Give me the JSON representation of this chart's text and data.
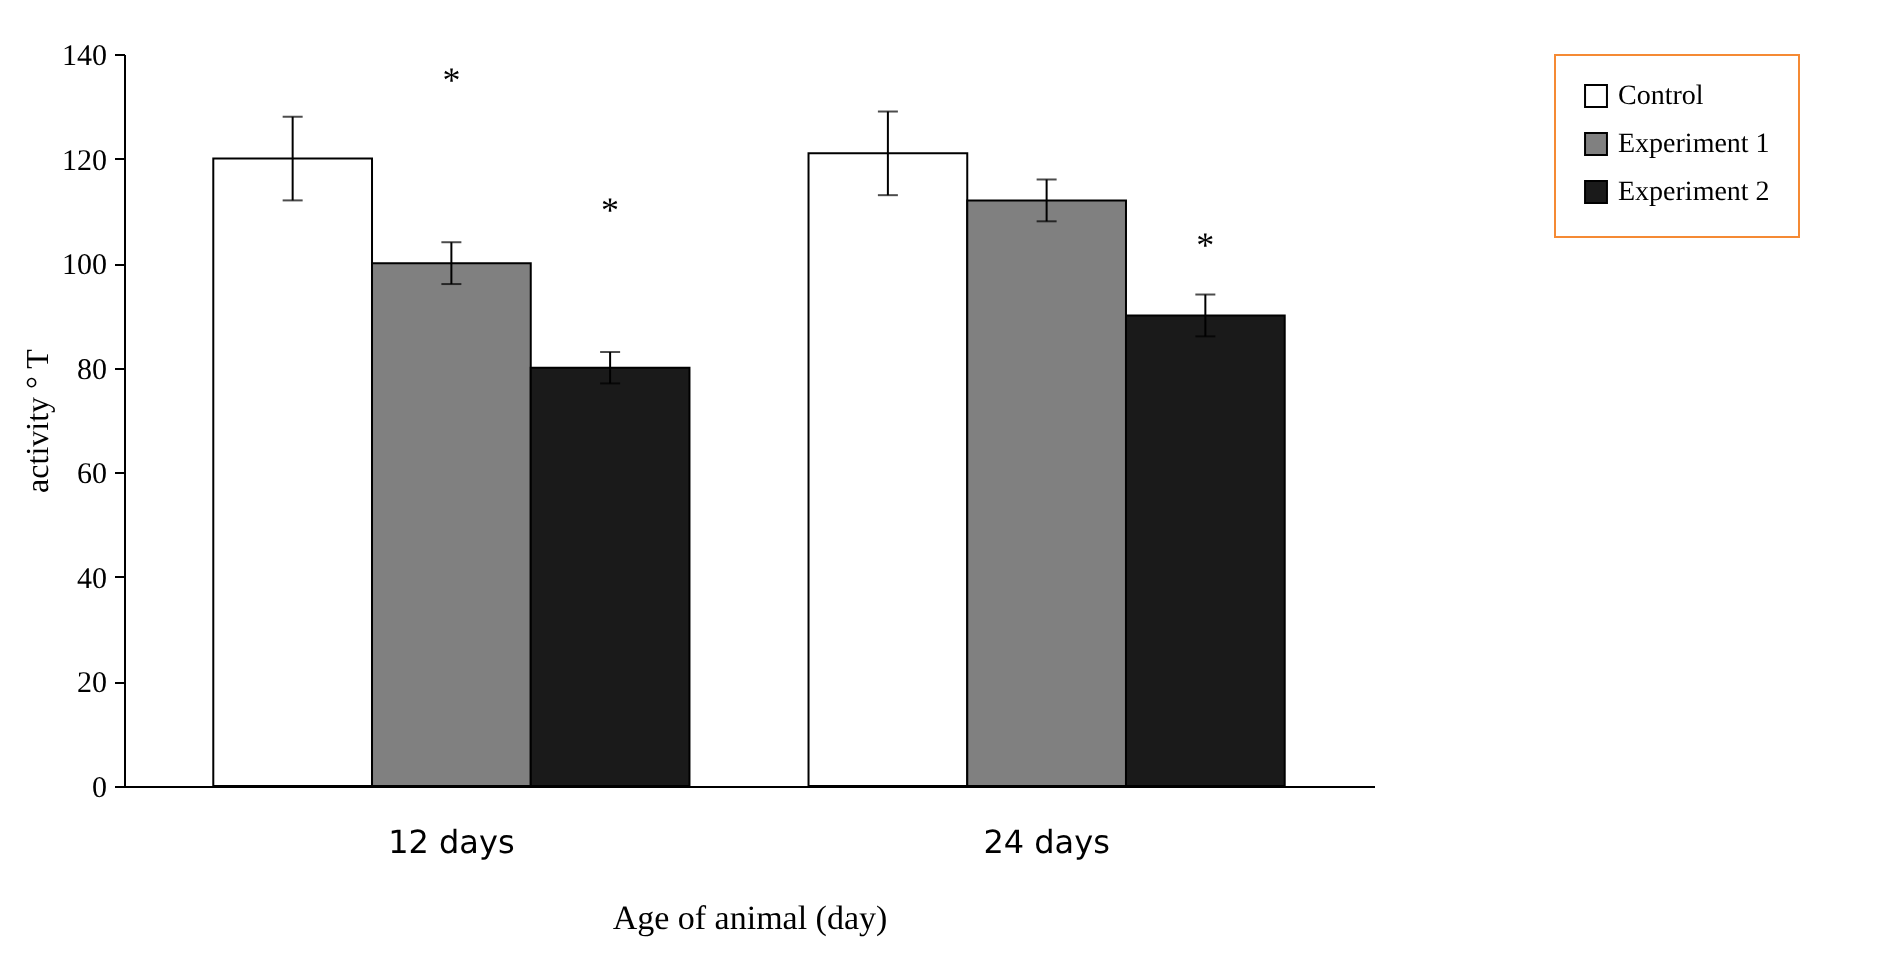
{
  "chart_data": {
    "type": "bar",
    "xlabel": "Age of animal (day)",
    "ylabel": "activity ° T",
    "categories": [
      "12 days",
      "24 days"
    ],
    "series": [
      {
        "name": "Control",
        "color": "#ffffff",
        "values": [
          120,
          121
        ],
        "errors": [
          8,
          8
        ]
      },
      {
        "name": "Experiment 1",
        "color": "#808080",
        "values": [
          100,
          112
        ],
        "errors": [
          4,
          4
        ]
      },
      {
        "name": "Experiment 2",
        "color": "#1a1a1a",
        "values": [
          80,
          90
        ],
        "errors": [
          3,
          4
        ]
      }
    ],
    "ylim": [
      0,
      140
    ],
    "yticks": [
      0,
      20,
      40,
      60,
      80,
      100,
      120,
      140
    ],
    "grid": false,
    "legend": "right",
    "annotations": [
      "*",
      "*",
      "*"
    ]
  }
}
